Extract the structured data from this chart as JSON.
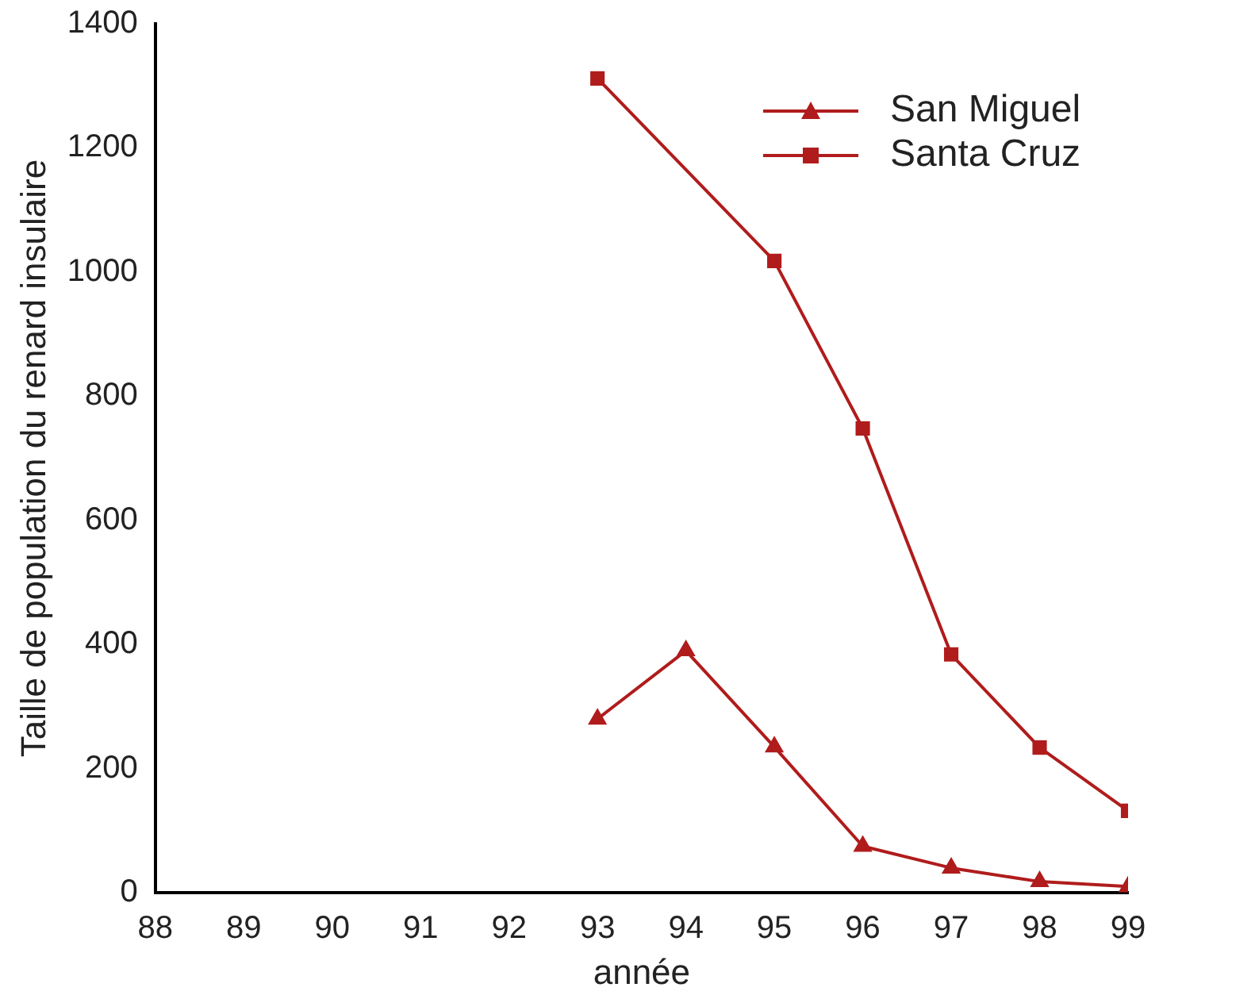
{
  "chart_data": {
    "type": "line",
    "xlabel": "année",
    "ylabel": "Taille de population du renard insulaire",
    "x": [
      93,
      94,
      95,
      96,
      97,
      98,
      99
    ],
    "series": [
      {
        "name": "San Miguel",
        "color": "#b01c1c",
        "marker": "triangle",
        "values": [
          280,
          390,
          235,
          75,
          40,
          18,
          10
        ]
      },
      {
        "name": "Santa Cruz",
        "color": "#b01c1c",
        "marker": "square",
        "x": [
          93,
          95,
          96,
          97,
          98,
          99
        ],
        "values": [
          1312,
          1018,
          748,
          384,
          234,
          132
        ]
      }
    ],
    "xlim": [
      88,
      99
    ],
    "xticks": [
      88,
      89,
      90,
      91,
      92,
      93,
      94,
      95,
      96,
      97,
      98,
      99
    ],
    "ylim": [
      0,
      1400
    ],
    "yticks": [
      0,
      200,
      400,
      600,
      800,
      1000,
      1200,
      1400
    ],
    "grid": false,
    "legend": "top right",
    "line_style": "solid"
  }
}
